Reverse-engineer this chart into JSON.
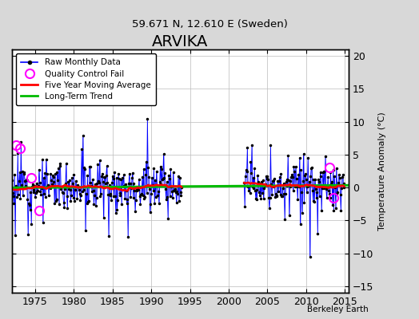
{
  "title": "ARVIKA",
  "subtitle": "59.671 N, 12.610 E (Sweden)",
  "ylabel": "Temperature Anomaly (°C)",
  "credit": "Berkeley Earth",
  "xlim": [
    1972.0,
    2015.5
  ],
  "ylim": [
    -16,
    21
  ],
  "yticks": [
    -15,
    -10,
    -5,
    0,
    5,
    10,
    15,
    20
  ],
  "xticks": [
    1975,
    1980,
    1985,
    1990,
    1995,
    2000,
    2005,
    2010,
    2015
  ],
  "fig_bg_color": "#d8d8d8",
  "plot_bg_color": "#ffffff",
  "line_color": "#0000ff",
  "stem_color": "#8888ff",
  "dot_color": "#000000",
  "ma_color": "#ff0000",
  "trend_color": "#00bb00",
  "qc_color": "#ff00ff",
  "start_year": 1972,
  "end_year": 1994,
  "start_year2": 2002,
  "end_year2": 2015,
  "seed": 12
}
